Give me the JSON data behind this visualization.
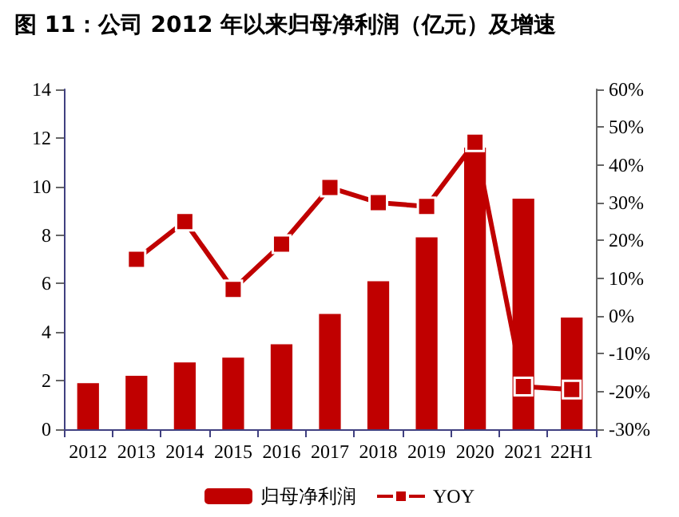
{
  "chart_data": {
    "type": "bar",
    "title": "图 11：公司 2012 年以来归母净利润（亿元）及增速",
    "categories": [
      "2012",
      "2013",
      "2014",
      "2015",
      "2016",
      "2017",
      "2018",
      "2019",
      "2020",
      "2021",
      "22H1"
    ],
    "series": [
      {
        "name": "归母净利润",
        "color": "#c00000",
        "values": [
          1.9,
          2.2,
          2.75,
          2.95,
          3.5,
          4.75,
          6.1,
          7.9,
          11.6,
          9.5,
          4.6
        ]
      },
      {
        "name": "YOY",
        "type": "line",
        "axis": "y2",
        "color": "#c00000",
        "marker": "square",
        "values": [
          null,
          15,
          25,
          7,
          19,
          34,
          30,
          29,
          46,
          -18.7,
          -19.5
        ]
      }
    ],
    "ylim": [
      0,
      14
    ],
    "yticks": [
      0,
      2,
      4,
      6,
      8,
      10,
      12,
      14
    ],
    "y2lim": [
      -30,
      60
    ],
    "y2ticks": [
      {
        "value": -30,
        "label": "-30%"
      },
      {
        "value": -20,
        "label": "-20%"
      },
      {
        "value": -10,
        "label": "-10%"
      },
      {
        "value": 0,
        "label": "0%"
      },
      {
        "value": 10,
        "label": "10%"
      },
      {
        "value": 20,
        "label": "20%"
      },
      {
        "value": 30,
        "label": "30%"
      },
      {
        "value": 40,
        "label": "40%"
      },
      {
        "value": 50,
        "label": "50%"
      },
      {
        "value": 60,
        "label": "60%"
      }
    ],
    "legend": "bottom"
  }
}
